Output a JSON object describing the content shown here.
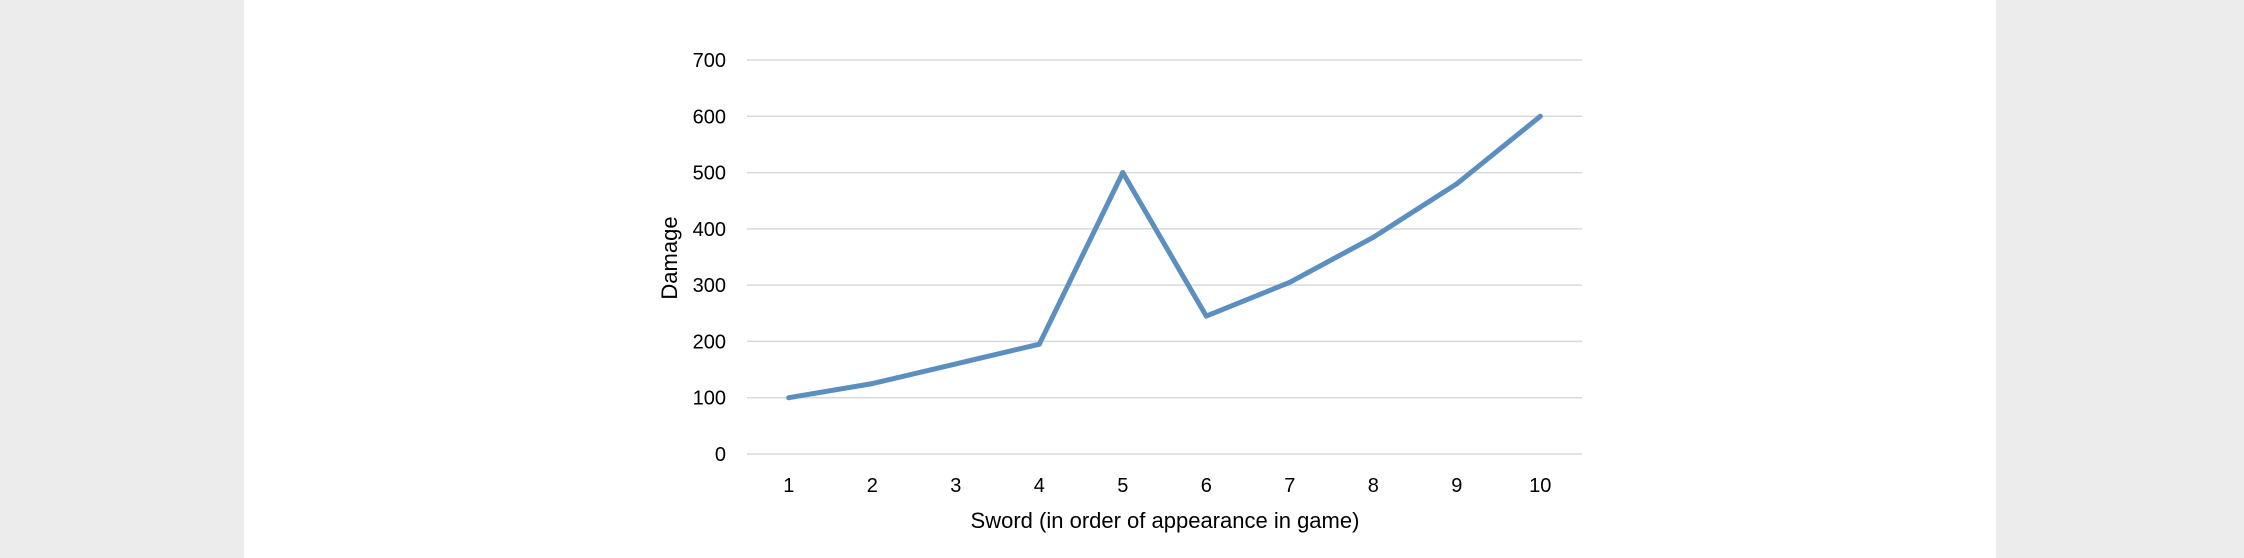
{
  "chart_data": {
    "type": "line",
    "title": "",
    "xlabel": "Sword (in order of appearance in game)",
    "ylabel": "Damage",
    "categories": [
      "1",
      "2",
      "3",
      "4",
      "5",
      "6",
      "7",
      "8",
      "9",
      "10"
    ],
    "series": [
      {
        "values": [
          100,
          125,
          160,
          195,
          500,
          245,
          305,
          385,
          480,
          600
        ]
      }
    ],
    "ylim": [
      0,
      700
    ],
    "yticks": [
      "0",
      "100",
      "200",
      "300",
      "400",
      "500",
      "600",
      "700"
    ],
    "grid": true,
    "legend": "none",
    "colors": {
      "line": "#5b8fc0",
      "grid": "#d9d9d9",
      "background": "#ffffff",
      "surround": "#ececec"
    }
  }
}
